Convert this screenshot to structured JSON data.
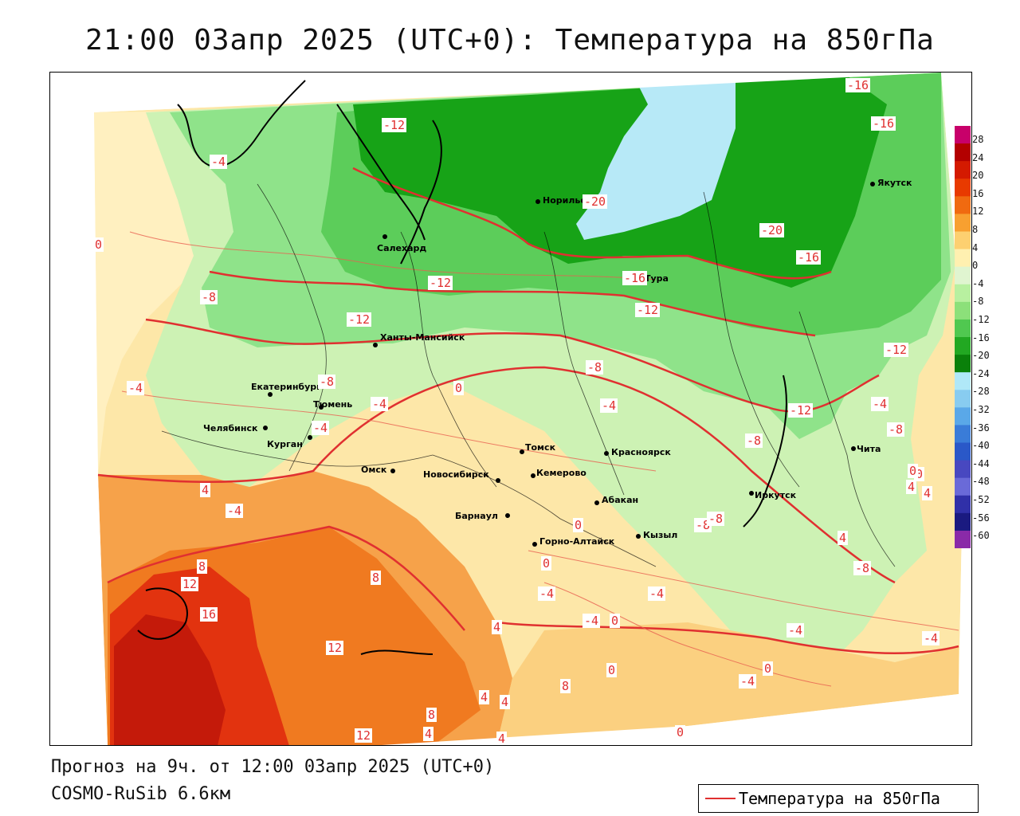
{
  "title": "21:00 03апр 2025 (UTC+0): Температура на 850гПа",
  "footer": {
    "forecast": "Прогноз на 9ч. от 12:00 03апр 2025 (UTC+0)",
    "model": "COSMO-RuSib 6.6км"
  },
  "legend": {
    "line_label": "Температура на 850гПа",
    "line_color": "#e03030"
  },
  "scale": {
    "labels": [
      "28",
      "24",
      "20",
      "16",
      "12",
      "8",
      "4",
      "0",
      "-4",
      "-8",
      "-12",
      "-16",
      "-20",
      "-24",
      "-28",
      "-32",
      "-36",
      "-40",
      "-44",
      "-48",
      "-52",
      "-56",
      "-60"
    ],
    "colors": [
      "#c8006a",
      "#b30000",
      "#d41a00",
      "#e83a00",
      "#f06a10",
      "#f8a030",
      "#fdd070",
      "#fff0b0",
      "#e0f5d0",
      "#b8f0a0",
      "#8ce07a",
      "#50c850",
      "#22a822",
      "#0a800a",
      "#b0e8f8",
      "#88ccf0",
      "#5aa8e8",
      "#3a7cd8",
      "#2a58c8",
      "#4848c0",
      "#6a6ad8",
      "#3030a8",
      "#1a1a80",
      "#8a2aa8"
    ]
  },
  "cities": [
    {
      "name": "Норильск"
    },
    {
      "name": "Якутск"
    },
    {
      "name": "Салехард"
    },
    {
      "name": "Тура"
    },
    {
      "name": "Ханты-Мансийск"
    },
    {
      "name": "Екатеринбург"
    },
    {
      "name": "Тюмень"
    },
    {
      "name": "Челябинск"
    },
    {
      "name": "Курган"
    },
    {
      "name": "Омск"
    },
    {
      "name": "Новосибирск"
    },
    {
      "name": "Томск"
    },
    {
      "name": "Кемерово"
    },
    {
      "name": "Красноярск"
    },
    {
      "name": "Абакан"
    },
    {
      "name": "Барнаул"
    },
    {
      "name": "Горно-Алтайск"
    },
    {
      "name": "Кызыл"
    },
    {
      "name": "Иркутск"
    },
    {
      "name": "Чита"
    }
  ],
  "isolines": [
    {
      "label": "-16"
    },
    {
      "label": "-16"
    },
    {
      "label": "-12"
    },
    {
      "label": "-4"
    },
    {
      "label": "-20"
    },
    {
      "label": "-20"
    },
    {
      "label": "-16"
    },
    {
      "label": "0"
    },
    {
      "label": "-12"
    },
    {
      "label": "-16"
    },
    {
      "label": "-12"
    },
    {
      "label": "-8"
    },
    {
      "label": "-12"
    },
    {
      "label": "-12"
    },
    {
      "label": "-4"
    },
    {
      "label": "-8"
    },
    {
      "label": "-4"
    },
    {
      "label": "0"
    },
    {
      "label": "-8"
    },
    {
      "label": "-4"
    },
    {
      "label": "-4"
    },
    {
      "label": "-12"
    },
    {
      "label": "-8"
    },
    {
      "label": "-4"
    },
    {
      "label": "-8"
    },
    {
      "label": "0"
    },
    {
      "label": "4"
    },
    {
      "label": "4"
    },
    {
      "label": "-4"
    },
    {
      "label": "0"
    },
    {
      "label": "-8"
    },
    {
      "label": "4"
    },
    {
      "label": "8"
    },
    {
      "label": "12"
    },
    {
      "label": "16"
    },
    {
      "label": "8"
    },
    {
      "label": "0"
    },
    {
      "label": "-4"
    },
    {
      "label": "-4"
    },
    {
      "label": "-4"
    },
    {
      "label": "0"
    },
    {
      "label": "4"
    },
    {
      "label": "12"
    },
    {
      "label": "0"
    },
    {
      "label": "-4"
    },
    {
      "label": "0"
    },
    {
      "label": "-4"
    },
    {
      "label": "-4"
    },
    {
      "label": "4"
    },
    {
      "label": "4"
    },
    {
      "label": "8"
    },
    {
      "label": "4"
    },
    {
      "label": "8"
    },
    {
      "label": "12"
    },
    {
      "label": "4"
    },
    {
      "label": "0"
    },
    {
      "label": "-8"
    },
    {
      "label": "-8"
    },
    {
      "label": "4"
    },
    {
      "label": "0"
    }
  ]
}
